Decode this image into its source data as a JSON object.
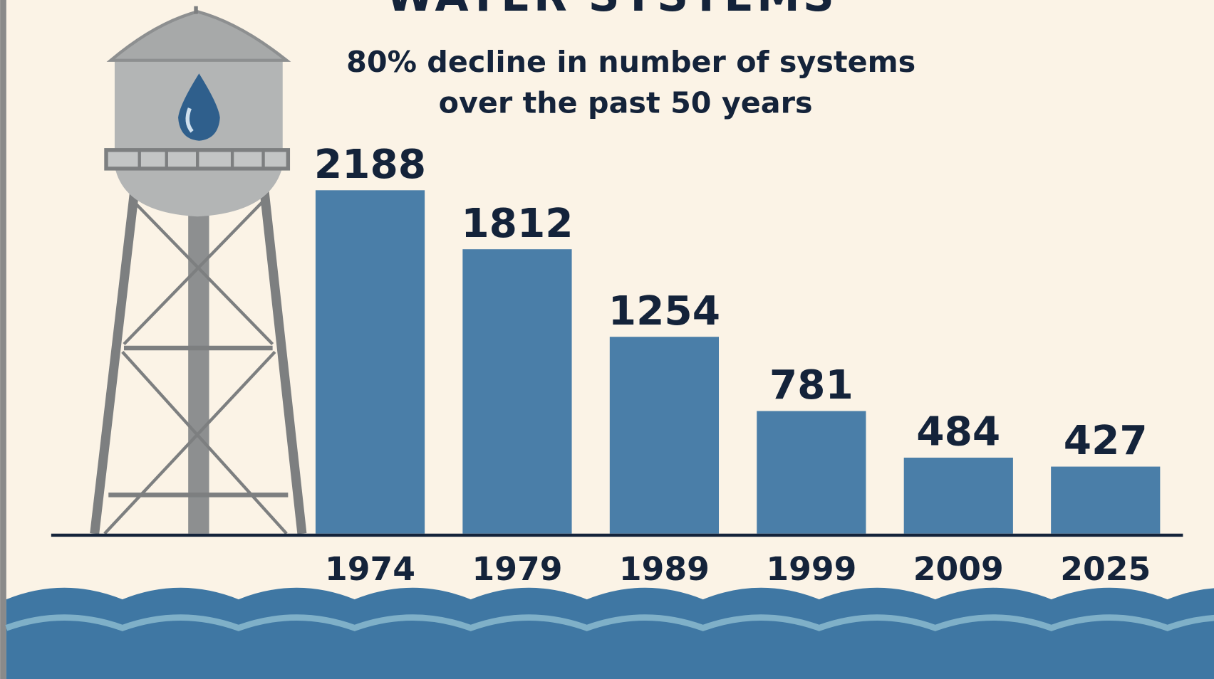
{
  "chart_data": {
    "type": "bar",
    "title": "WATER SYSTEMS",
    "subtitle": [
      "80% decline in number of systems",
      "over the past 50 years"
    ],
    "categories": [
      "1974",
      "1979",
      "1989",
      "1999",
      "2009",
      "2025"
    ],
    "values": [
      2188,
      1812,
      1254,
      781,
      484,
      427
    ],
    "color": "#4a7ea8"
  }
}
